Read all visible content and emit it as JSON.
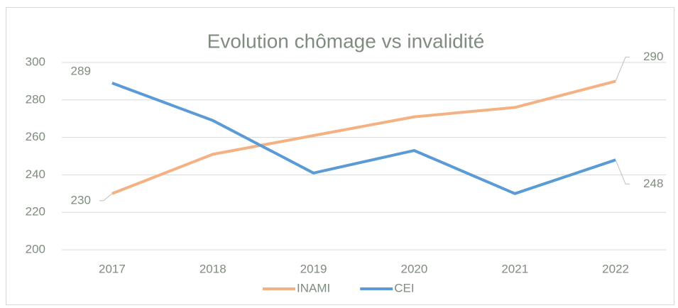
{
  "chart_data": {
    "type": "line",
    "title": "Evolution chômage vs invalidité",
    "categories": [
      "2017",
      "2018",
      "2019",
      "2020",
      "2021",
      "2022"
    ],
    "series": [
      {
        "name": "INAMI",
        "color": "#f4b183",
        "values": [
          230,
          251,
          261,
          271,
          276,
          290
        ]
      },
      {
        "name": "CEI",
        "color": "#5b9bd5",
        "values": [
          289,
          269,
          241,
          253,
          230,
          248
        ]
      }
    ],
    "ylim": [
      200,
      300
    ],
    "yticks": [
      200,
      220,
      240,
      260,
      280,
      300
    ],
    "grid": true,
    "legend": "bottom"
  }
}
